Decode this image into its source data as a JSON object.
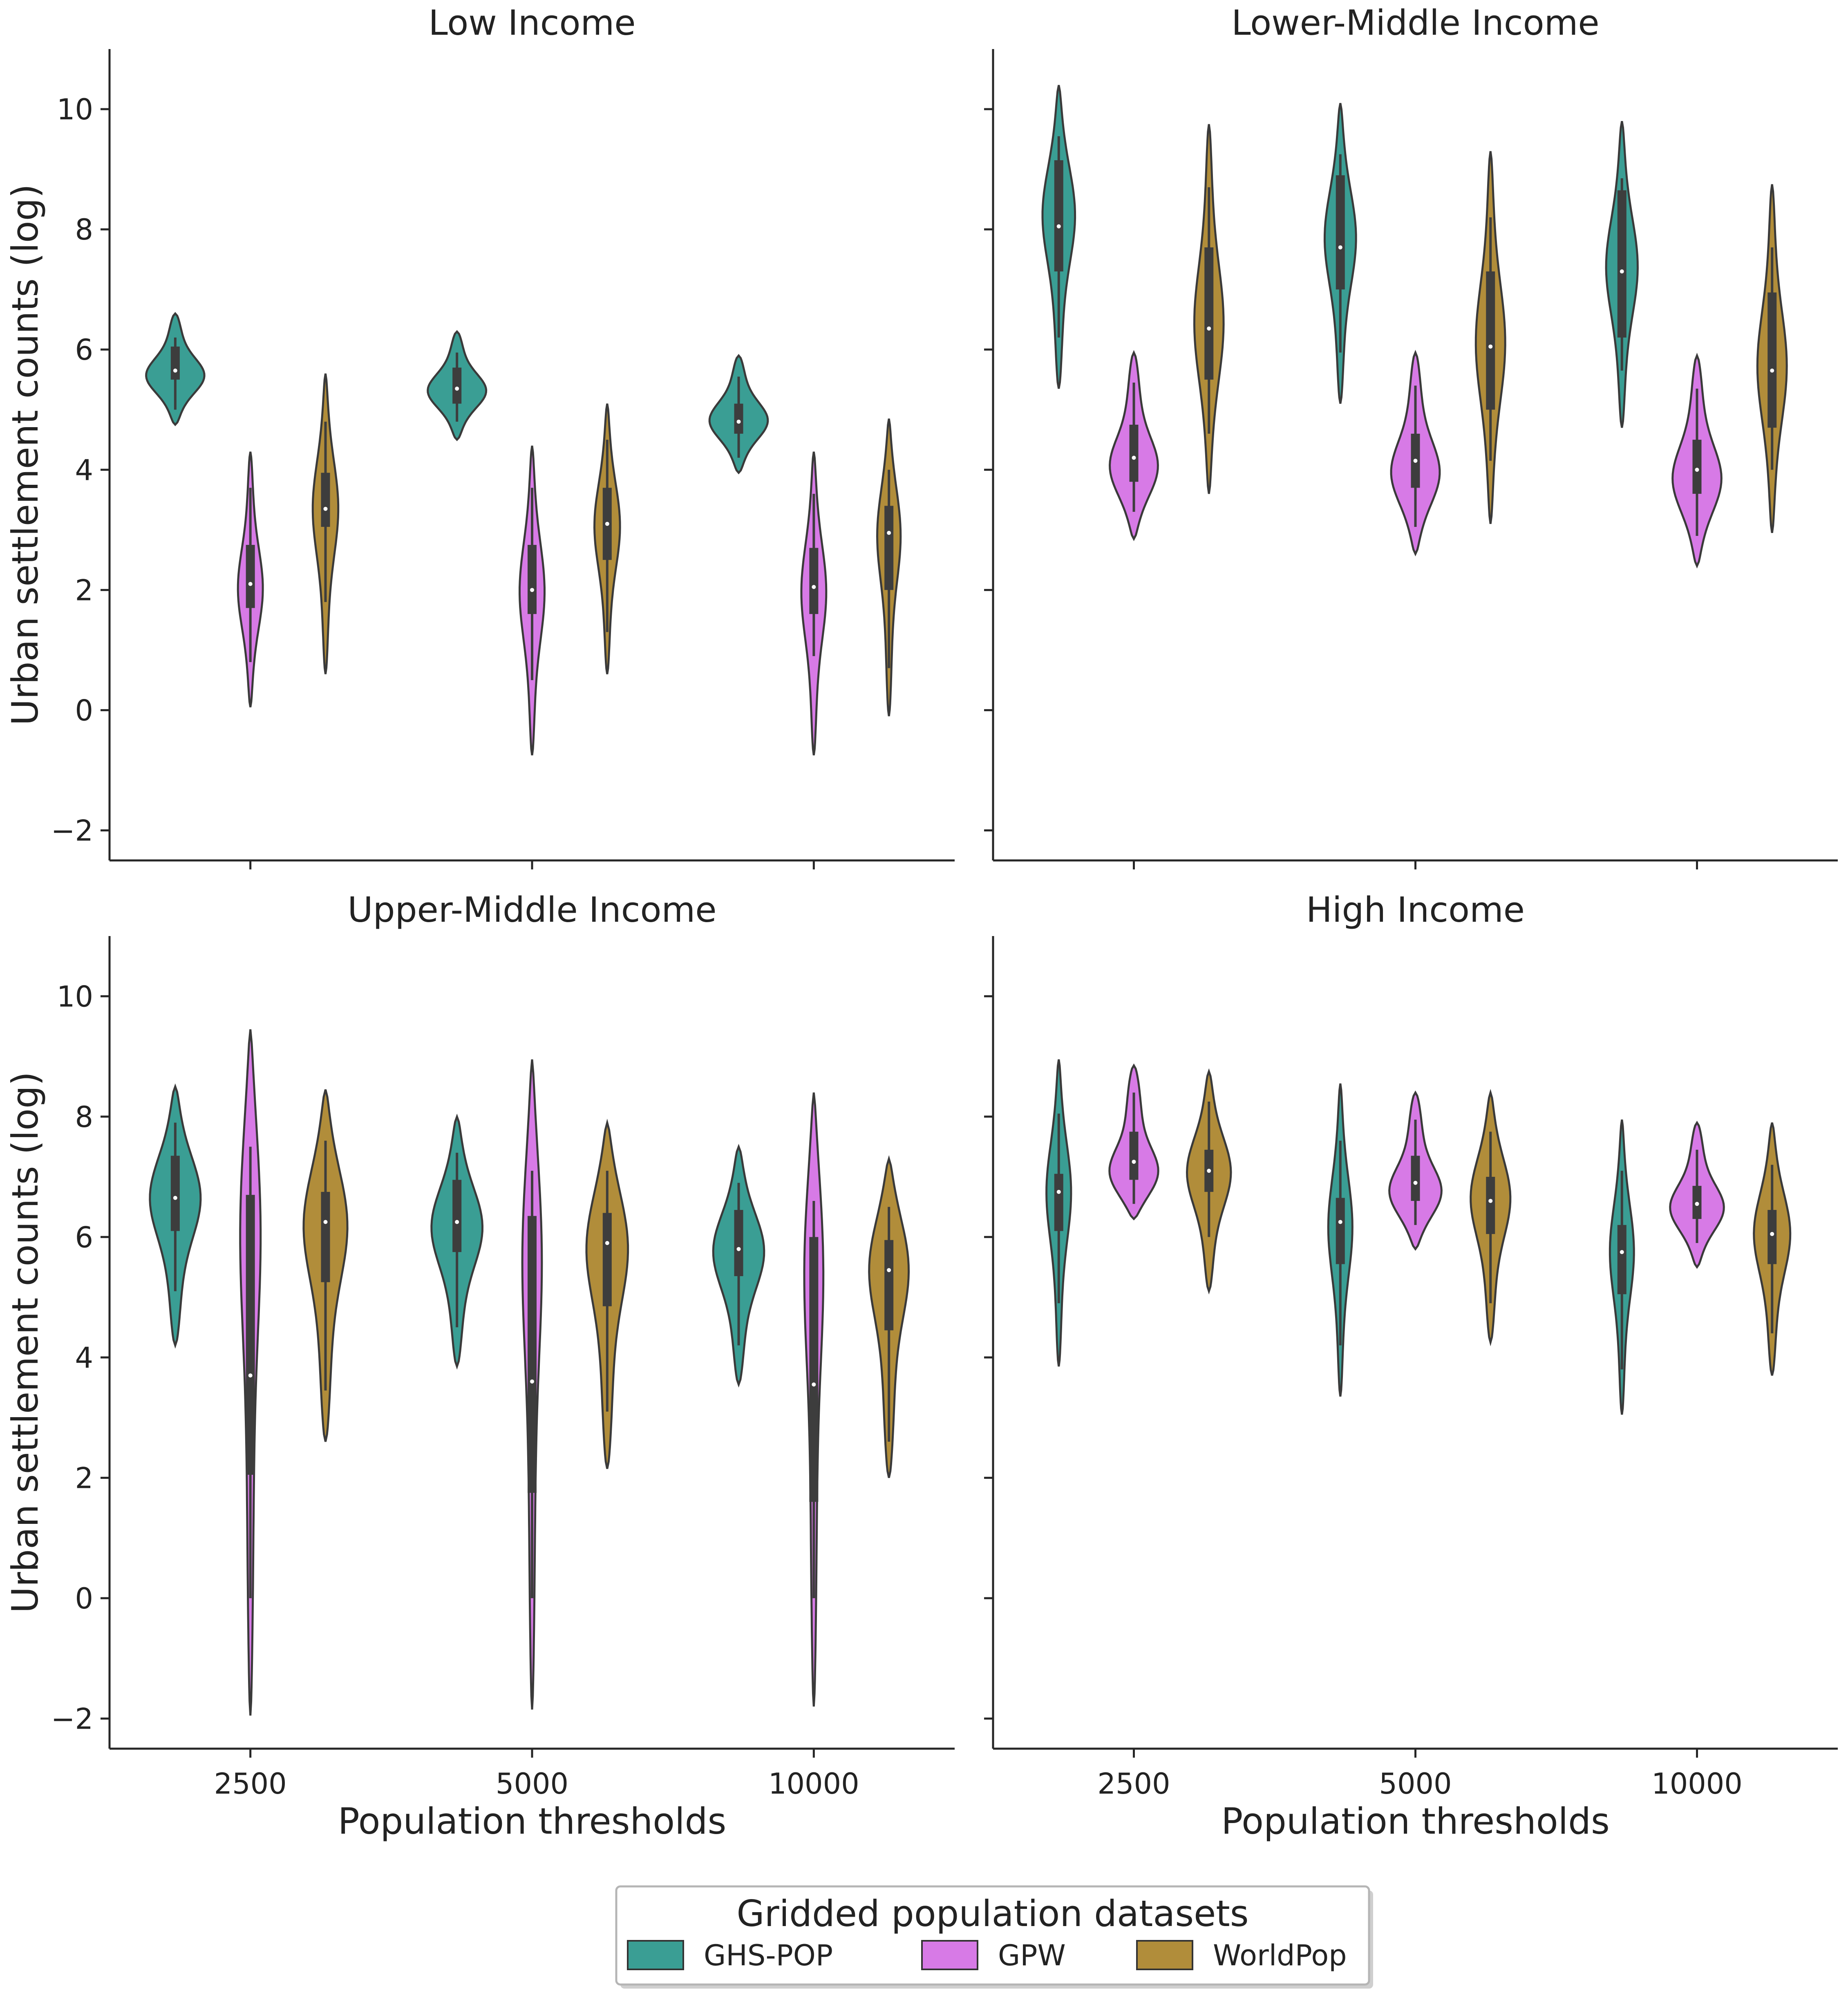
{
  "chart_data": {
    "type": "violin",
    "x_categories": [
      "2500",
      "5000",
      "10000"
    ],
    "y_ticks": [
      -2,
      0,
      2,
      4,
      6,
      8,
      10
    ],
    "ylim": [
      -2.5,
      11
    ],
    "xlabel": "Population thresholds",
    "ylabel": "Urban settlement counts (log)",
    "legend": {
      "title": "Gridded population datasets",
      "placement": "bottom-center",
      "entries": [
        {
          "name": "GHS-POP",
          "color": "#3a9e94"
        },
        {
          "name": "GPW",
          "color": "#d77ae6"
        },
        {
          "name": "WorldPop",
          "color": "#b18d3a"
        }
      ]
    },
    "grid": false,
    "panels": [
      {
        "title": "Low Income",
        "series": [
          {
            "name": "GHS-POP",
            "groups": [
              {
                "x": "2500",
                "min": 4.75,
                "max": 6.6,
                "median": 5.65,
                "q1": 5.5,
                "q3": 6.05,
                "wlo": 5.0,
                "whi": 6.2,
                "mode": 5.55,
                "width": 0.8
              },
              {
                "x": "5000",
                "min": 4.5,
                "max": 6.3,
                "median": 5.35,
                "q1": 5.1,
                "q3": 5.7,
                "wlo": 4.8,
                "whi": 5.95,
                "mode": 5.3,
                "width": 0.8
              },
              {
                "x": "10000",
                "min": 3.95,
                "max": 5.9,
                "median": 4.8,
                "q1": 4.6,
                "q3": 5.1,
                "wlo": 4.2,
                "whi": 5.55,
                "mode": 4.8,
                "width": 0.8
              }
            ]
          },
          {
            "name": "GPW",
            "groups": [
              {
                "x": "2500",
                "min": 0.05,
                "max": 4.3,
                "median": 2.1,
                "q1": 1.7,
                "q3": 2.75,
                "wlo": 0.8,
                "whi": 3.7,
                "mode": 2.0,
                "width": 0.34
              },
              {
                "x": "5000",
                "min": -0.75,
                "max": 4.4,
                "median": 2.0,
                "q1": 1.6,
                "q3": 2.75,
                "wlo": 0.5,
                "whi": 3.7,
                "mode": 2.0,
                "width": 0.34
              },
              {
                "x": "10000",
                "min": -0.75,
                "max": 4.3,
                "median": 2.05,
                "q1": 1.6,
                "q3": 2.7,
                "wlo": 0.9,
                "whi": 3.6,
                "mode": 2.0,
                "width": 0.34
              }
            ]
          },
          {
            "name": "WorldPop",
            "groups": [
              {
                "x": "2500",
                "min": 0.6,
                "max": 5.6,
                "median": 3.35,
                "q1": 3.05,
                "q3": 3.95,
                "wlo": 1.8,
                "whi": 4.8,
                "mode": 3.4,
                "width": 0.35
              },
              {
                "x": "5000",
                "min": 0.6,
                "max": 5.1,
                "median": 3.1,
                "q1": 2.5,
                "q3": 3.7,
                "wlo": 1.3,
                "whi": 4.5,
                "mode": 3.1,
                "width": 0.35
              },
              {
                "x": "10000",
                "min": -0.1,
                "max": 4.85,
                "median": 2.95,
                "q1": 2.0,
                "q3": 3.4,
                "wlo": 0.7,
                "whi": 4.0,
                "mode": 3.0,
                "width": 0.33
              }
            ]
          }
        ]
      },
      {
        "title": "Lower-Middle Income",
        "series": [
          {
            "name": "GHS-POP",
            "groups": [
              {
                "x": "2500",
                "min": 5.35,
                "max": 10.4,
                "median": 8.05,
                "q1": 7.3,
                "q3": 9.15,
                "wlo": 6.2,
                "whi": 9.55,
                "mode": 8.3,
                "width": 0.45
              },
              {
                "x": "5000",
                "min": 5.1,
                "max": 10.1,
                "median": 7.7,
                "q1": 7.0,
                "q3": 8.9,
                "wlo": 5.95,
                "whi": 9.25,
                "mode": 7.9,
                "width": 0.43
              },
              {
                "x": "10000",
                "min": 4.7,
                "max": 9.8,
                "median": 7.3,
                "q1": 6.2,
                "q3": 8.65,
                "wlo": 5.65,
                "whi": 8.85,
                "mode": 7.4,
                "width": 0.43
              }
            ]
          },
          {
            "name": "GPW",
            "groups": [
              {
                "x": "2500",
                "min": 2.85,
                "max": 5.95,
                "median": 4.2,
                "q1": 3.8,
                "q3": 4.75,
                "wlo": 3.3,
                "whi": 5.45,
                "mode": 4.0,
                "width": 0.68
              },
              {
                "x": "5000",
                "min": 2.6,
                "max": 5.95,
                "median": 4.15,
                "q1": 3.7,
                "q3": 4.6,
                "wlo": 3.05,
                "whi": 5.4,
                "mode": 3.9,
                "width": 0.68
              },
              {
                "x": "10000",
                "min": 2.4,
                "max": 5.9,
                "median": 4.0,
                "q1": 3.6,
                "q3": 4.5,
                "wlo": 2.9,
                "whi": 5.35,
                "mode": 3.8,
                "width": 0.68
              }
            ]
          },
          {
            "name": "WorldPop",
            "groups": [
              {
                "x": "2500",
                "min": 3.6,
                "max": 9.75,
                "median": 6.35,
                "q1": 5.5,
                "q3": 7.7,
                "wlo": 4.6,
                "whi": 8.7,
                "mode": 6.4,
                "width": 0.4
              },
              {
                "x": "5000",
                "min": 3.1,
                "max": 9.3,
                "median": 6.05,
                "q1": 5.0,
                "q3": 7.3,
                "wlo": 4.15,
                "whi": 8.2,
                "mode": 6.1,
                "width": 0.4
              },
              {
                "x": "10000",
                "min": 2.95,
                "max": 8.75,
                "median": 5.65,
                "q1": 4.7,
                "q3": 6.95,
                "wlo": 4.0,
                "whi": 7.7,
                "mode": 5.7,
                "width": 0.4
              }
            ]
          }
        ]
      },
      {
        "title": "Upper-Middle Income",
        "series": [
          {
            "name": "GHS-POP",
            "groups": [
              {
                "x": "2500",
                "min": 4.2,
                "max": 8.5,
                "median": 6.65,
                "q1": 6.1,
                "q3": 7.35,
                "wlo": 5.1,
                "whi": 7.9,
                "mode": 6.7,
                "width": 0.7
              },
              {
                "x": "5000",
                "min": 3.85,
                "max": 8.0,
                "median": 6.25,
                "q1": 5.75,
                "q3": 6.95,
                "wlo": 4.5,
                "whi": 7.4,
                "mode": 6.2,
                "width": 0.7
              },
              {
                "x": "10000",
                "min": 3.55,
                "max": 7.5,
                "median": 5.8,
                "q1": 5.35,
                "q3": 6.45,
                "wlo": 4.2,
                "whi": 6.9,
                "mode": 5.8,
                "width": 0.7
              }
            ]
          },
          {
            "name": "GPW",
            "groups": [
              {
                "x": "2500",
                "min": -1.95,
                "max": 9.45,
                "median": 3.7,
                "q1": 2.05,
                "q3": 6.7,
                "wlo": 0.0,
                "whi": 7.5,
                "mode": 6.5,
                "width": 0.32
              },
              {
                "x": "5000",
                "min": -1.85,
                "max": 8.95,
                "median": 3.6,
                "q1": 1.75,
                "q3": 6.35,
                "wlo": 0.0,
                "whi": 7.1,
                "mode": 6.0,
                "width": 0.3
              },
              {
                "x": "10000",
                "min": -1.8,
                "max": 8.4,
                "median": 3.55,
                "q1": 1.6,
                "q3": 6.0,
                "wlo": 0.0,
                "whi": 6.6,
                "mode": 5.8,
                "width": 0.3
              }
            ]
          },
          {
            "name": "WorldPop",
            "groups": [
              {
                "x": "2500",
                "min": 2.6,
                "max": 8.45,
                "median": 6.25,
                "q1": 5.25,
                "q3": 6.75,
                "wlo": 3.45,
                "whi": 7.6,
                "mode": 6.3,
                "width": 0.62
              },
              {
                "x": "5000",
                "min": 2.15,
                "max": 7.9,
                "median": 5.9,
                "q1": 4.85,
                "q3": 6.4,
                "wlo": 3.1,
                "whi": 7.1,
                "mode": 5.95,
                "width": 0.6
              },
              {
                "x": "10000",
                "min": 2.0,
                "max": 7.3,
                "median": 5.45,
                "q1": 4.45,
                "q3": 5.95,
                "wlo": 2.6,
                "whi": 6.5,
                "mode": 5.6,
                "width": 0.58
              }
            ]
          }
        ]
      },
      {
        "title": "High Income",
        "series": [
          {
            "name": "GHS-POP",
            "groups": [
              {
                "x": "2500",
                "min": 3.85,
                "max": 8.95,
                "median": 6.75,
                "q1": 6.1,
                "q3": 7.05,
                "wlo": 4.9,
                "whi": 8.05,
                "mode": 6.8,
                "width": 0.34
              },
              {
                "x": "5000",
                "min": 3.35,
                "max": 8.55,
                "median": 6.25,
                "q1": 5.55,
                "q3": 6.65,
                "wlo": 4.2,
                "whi": 7.6,
                "mode": 6.2,
                "width": 0.33
              },
              {
                "x": "10000",
                "min": 3.05,
                "max": 7.95,
                "median": 5.75,
                "q1": 5.05,
                "q3": 6.2,
                "wlo": 3.8,
                "whi": 7.1,
                "mode": 5.8,
                "width": 0.33
              }
            ]
          },
          {
            "name": "GPW",
            "groups": [
              {
                "x": "2500",
                "min": 6.3,
                "max": 8.85,
                "median": 7.25,
                "q1": 6.95,
                "q3": 7.75,
                "wlo": 6.55,
                "whi": 8.4,
                "mode": 7.0,
                "width": 0.75
              },
              {
                "x": "5000",
                "min": 5.8,
                "max": 8.4,
                "median": 6.9,
                "q1": 6.6,
                "q3": 7.35,
                "wlo": 6.2,
                "whi": 7.95,
                "mode": 6.7,
                "width": 0.75
              },
              {
                "x": "10000",
                "min": 5.5,
                "max": 7.9,
                "median": 6.55,
                "q1": 6.3,
                "q3": 6.85,
                "wlo": 5.9,
                "whi": 7.45,
                "mode": 6.45,
                "width": 0.75
              }
            ]
          },
          {
            "name": "WorldPop",
            "groups": [
              {
                "x": "2500",
                "min": 5.1,
                "max": 8.75,
                "median": 7.1,
                "q1": 6.75,
                "q3": 7.45,
                "wlo": 6.0,
                "whi": 8.25,
                "mode": 7.1,
                "width": 0.6
              },
              {
                "x": "5000",
                "min": 4.25,
                "max": 8.4,
                "median": 6.6,
                "q1": 6.05,
                "q3": 7.0,
                "wlo": 4.9,
                "whi": 7.75,
                "mode": 6.7,
                "width": 0.55
              },
              {
                "x": "10000",
                "min": 3.7,
                "max": 7.9,
                "median": 6.05,
                "q1": 5.55,
                "q3": 6.45,
                "wlo": 4.4,
                "whi": 7.2,
                "mode": 6.1,
                "width": 0.5
              }
            ]
          }
        ]
      }
    ]
  }
}
